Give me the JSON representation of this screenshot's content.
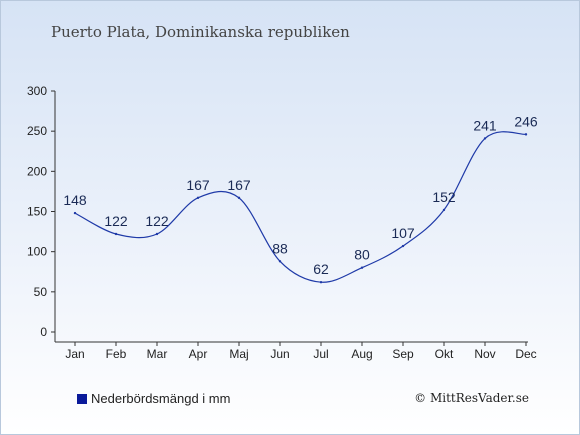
{
  "title": "Puerto Plata, Dominikanska republiken",
  "legend_label": "Nederbördsmängd i mm",
  "copyright": "© MittResVader.se",
  "colors": {
    "line": "#1f3aa8",
    "legend": "#0a1a9a",
    "axis": "#333333"
  },
  "chart_data": {
    "type": "line",
    "categories": [
      "Jan",
      "Feb",
      "Mar",
      "Apr",
      "Maj",
      "Jun",
      "Jul",
      "Aug",
      "Sep",
      "Okt",
      "Nov",
      "Dec"
    ],
    "series": [
      {
        "name": "Nederbördsmängd i mm",
        "values": [
          148,
          122,
          122,
          167,
          167,
          88,
          62,
          80,
          107,
          152,
          241,
          246
        ]
      }
    ],
    "ylim": [
      0,
      300
    ],
    "yticks": [
      0,
      50,
      100,
      150,
      200,
      250,
      300
    ],
    "grid": false,
    "legend": "bottom-left"
  }
}
